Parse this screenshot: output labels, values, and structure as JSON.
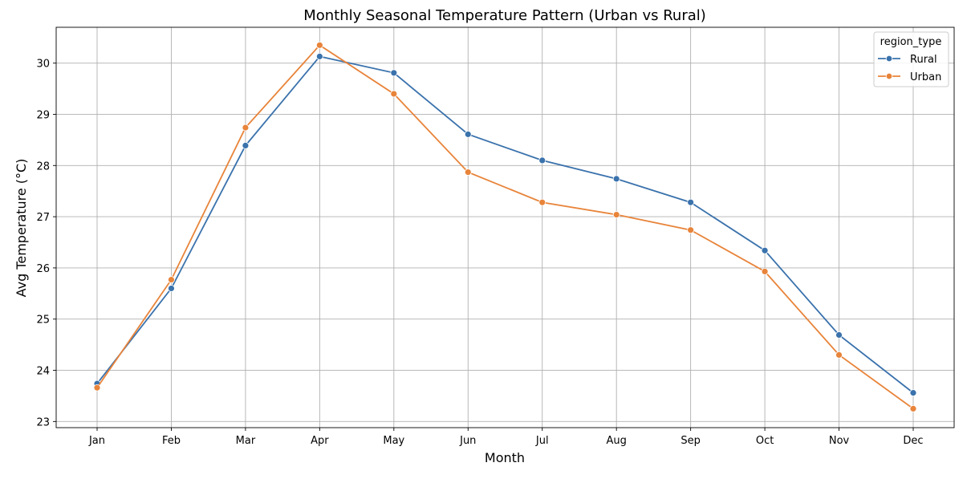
{
  "chart_data": {
    "type": "line",
    "title": "Monthly Seasonal Temperature Pattern (Urban vs Rural)",
    "xlabel": "Month",
    "ylabel": "Avg Temperature (°C)",
    "categories": [
      "Jan",
      "Feb",
      "Mar",
      "Apr",
      "May",
      "Jun",
      "Jul",
      "Aug",
      "Sep",
      "Oct",
      "Nov",
      "Dec"
    ],
    "ylim": [
      22.88,
      30.7
    ],
    "yticks": [
      23,
      24,
      25,
      26,
      27,
      28,
      29,
      30
    ],
    "grid": true,
    "legend": {
      "title": "region_type",
      "placement": "top-right"
    },
    "series": [
      {
        "name": "Rural",
        "color": "#3a72ac",
        "values": [
          23.74,
          25.6,
          28.39,
          30.13,
          29.81,
          28.61,
          28.1,
          27.74,
          27.28,
          26.34,
          24.69,
          23.56
        ]
      },
      {
        "name": "Urban",
        "color": "#e8843a",
        "values": [
          23.66,
          25.77,
          28.74,
          30.35,
          29.4,
          27.87,
          27.28,
          27.04,
          26.74,
          25.93,
          24.3,
          23.25
        ]
      }
    ]
  }
}
